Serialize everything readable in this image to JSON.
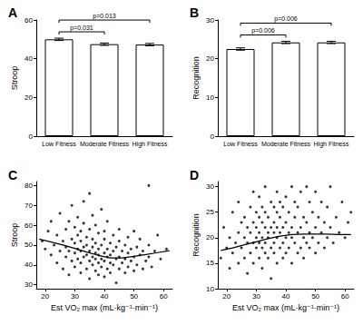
{
  "chart_data": [
    {
      "type": "bar",
      "title": "A",
      "y_label": "Stroop",
      "categories": [
        "Low Fitness",
        "Moderate Fitness",
        "High Fitness"
      ],
      "values": [
        50.0,
        47.5,
        47.3
      ],
      "errors": [
        0.6,
        0.6,
        0.6
      ],
      "color": "#ffffff",
      "ylim": [
        0,
        60
      ],
      "yticks": [
        0,
        20,
        40,
        60
      ],
      "grid": false,
      "annotations": [
        {
          "text": "p=0.031",
          "from": "Low Fitness",
          "to": "Moderate Fitness"
        },
        {
          "text": "p=0.013",
          "from": "Low Fitness",
          "to": "High Fitness"
        }
      ]
    },
    {
      "type": "bar",
      "title": "B",
      "y_label": "Recognition",
      "categories": [
        "Low Fitness",
        "Moderate Fitness",
        "High Fitness"
      ],
      "values": [
        22.5,
        24.2,
        24.2
      ],
      "errors": [
        0.3,
        0.3,
        0.3
      ],
      "color": "#ffffff",
      "ylim": [
        0,
        30
      ],
      "yticks": [
        0,
        10,
        20,
        30
      ],
      "grid": false,
      "annotations": [
        {
          "text": "p=0.006",
          "from": "Low Fitness",
          "to": "Moderate Fitness"
        },
        {
          "text": "p=0.006",
          "from": "Low Fitness",
          "to": "High Fitness"
        }
      ]
    },
    {
      "type": "scatter",
      "title": "C",
      "y_label": "Stroop",
      "x_label": "Est VO₂ max (mL·kg⁻¹·min⁻¹)",
      "xlim": [
        17,
        63
      ],
      "xticks": [
        20,
        30,
        40,
        50,
        60
      ],
      "ylim": [
        28,
        82
      ],
      "yticks": [
        30,
        40,
        50,
        60,
        70,
        80
      ],
      "grid": false,
      "series": [
        {
          "type": "scatter",
          "color": "#000000",
          "marker": "circle",
          "x": [
            19,
            20,
            21,
            22,
            22,
            23,
            24,
            24,
            25,
            25,
            26,
            26,
            27,
            27,
            27,
            28,
            28,
            28,
            29,
            29,
            29,
            30,
            30,
            30,
            30,
            31,
            31,
            31,
            31,
            32,
            32,
            32,
            32,
            32,
            33,
            33,
            33,
            33,
            34,
            34,
            34,
            34,
            35,
            35,
            35,
            35,
            35,
            36,
            36,
            36,
            36,
            36,
            37,
            37,
            37,
            37,
            37,
            38,
            38,
            38,
            38,
            38,
            39,
            39,
            39,
            39,
            40,
            40,
            40,
            40,
            40,
            41,
            41,
            41,
            41,
            42,
            42,
            42,
            42,
            43,
            43,
            43,
            44,
            44,
            44,
            45,
            45,
            45,
            45,
            46,
            46,
            47,
            47,
            47,
            48,
            48,
            48,
            49,
            49,
            50,
            50,
            50,
            51,
            51,
            52,
            52,
            53,
            53,
            54,
            55,
            55,
            56,
            57,
            58,
            59,
            61,
            55
          ],
          "values": [
            52,
            48,
            57,
            45,
            62,
            50,
            41,
            55,
            47,
            66,
            38,
            52,
            44,
            58,
            49,
            35,
            47,
            62,
            42,
            53,
            70,
            39,
            46,
            51,
            59,
            43,
            48,
            55,
            64,
            36,
            41,
            47,
            52,
            57,
            44,
            49,
            61,
            72,
            38,
            45,
            50,
            54,
            33,
            42,
            47,
            58,
            76,
            40,
            44,
            49,
            53,
            65,
            37,
            43,
            46,
            51,
            60,
            35,
            41,
            45,
            48,
            56,
            39,
            43,
            50,
            68,
            34,
            42,
            46,
            53,
            57,
            38,
            44,
            48,
            62,
            36,
            41,
            45,
            51,
            40,
            47,
            55,
            31,
            43,
            49,
            38,
            44,
            52,
            58,
            41,
            47,
            36,
            43,
            50,
            39,
            46,
            54,
            42,
            48,
            37,
            44,
            57,
            40,
            49,
            45,
            53,
            38,
            47,
            42,
            50,
            44,
            39,
            47,
            55,
            43,
            48,
            80
          ]
        },
        {
          "type": "line",
          "color": "#000000",
          "line_style": "solid",
          "x": [
            18,
            22,
            26,
            30,
            34,
            38,
            42,
            46,
            50,
            54,
            58,
            62
          ],
          "values": [
            53,
            51.5,
            50,
            48.3,
            46.5,
            44.8,
            43.5,
            43.5,
            44.3,
            45.2,
            46.2,
            47.2
          ]
        }
      ]
    },
    {
      "type": "scatter",
      "title": "D",
      "y_label": "Recognition",
      "x_label": "Est VO₂ max (mL·kg⁻¹·min⁻¹)",
      "xlim": [
        17,
        63
      ],
      "xticks": [
        20,
        30,
        40,
        50,
        60
      ],
      "ylim": [
        10,
        31
      ],
      "yticks": [
        10,
        15,
        20,
        25,
        30
      ],
      "grid": false,
      "series": [
        {
          "type": "scatter",
          "color": "#000000",
          "marker": "circle",
          "x": [
            18,
            19,
            20,
            21,
            21,
            22,
            22,
            23,
            24,
            24,
            24,
            25,
            25,
            26,
            26,
            26,
            27,
            27,
            27,
            28,
            28,
            28,
            29,
            29,
            29,
            29,
            30,
            30,
            30,
            30,
            31,
            31,
            31,
            31,
            31,
            32,
            32,
            32,
            32,
            32,
            33,
            33,
            33,
            33,
            33,
            34,
            34,
            34,
            34,
            35,
            35,
            35,
            35,
            36,
            36,
            36,
            36,
            36,
            37,
            37,
            37,
            37,
            37,
            38,
            38,
            38,
            38,
            39,
            39,
            39,
            39,
            40,
            40,
            40,
            40,
            41,
            41,
            41,
            42,
            42,
            42,
            42,
            43,
            43,
            43,
            44,
            44,
            44,
            45,
            45,
            45,
            46,
            46,
            46,
            47,
            47,
            47,
            48,
            48,
            48,
            49,
            49,
            50,
            50,
            50,
            51,
            51,
            52,
            52,
            53,
            53,
            54,
            54,
            55,
            55,
            56,
            57,
            58,
            59,
            60,
            61,
            62
          ],
          "values": [
            16,
            22,
            18,
            14,
            20,
            17,
            25,
            19,
            15,
            21,
            27,
            18,
            23,
            16,
            20,
            24,
            13,
            19,
            22,
            17,
            21,
            26,
            15,
            19,
            23,
            29,
            18,
            20,
            22,
            25,
            16,
            19,
            21,
            24,
            28,
            14,
            18,
            20,
            23,
            26,
            17,
            19,
            22,
            25,
            30,
            16,
            20,
            21,
            24,
            12,
            18,
            22,
            27,
            17,
            19,
            21,
            23,
            26,
            15,
            20,
            22,
            25,
            29,
            18,
            21,
            24,
            27,
            16,
            19,
            22,
            26,
            17,
            20,
            23,
            28,
            18,
            21,
            25,
            15,
            20,
            22,
            30,
            19,
            24,
            27,
            17,
            21,
            26,
            18,
            22,
            29,
            16,
            20,
            24,
            19,
            23,
            30,
            18,
            21,
            27,
            20,
            25,
            17,
            22,
            29,
            19,
            24,
            21,
            27,
            18,
            23,
            20,
            26,
            22,
            30,
            19,
            24,
            21,
            27,
            20,
            23,
            25
          ]
        },
        {
          "type": "line",
          "color": "#000000",
          "line_style": "solid",
          "x": [
            18,
            22,
            26,
            30,
            34,
            38,
            42,
            46,
            50,
            54,
            58,
            62
          ],
          "values": [
            17.5,
            18,
            18.6,
            19.2,
            19.8,
            20.3,
            20.6,
            20.7,
            20.7,
            20.7,
            20.6,
            20.6
          ]
        }
      ]
    }
  ]
}
